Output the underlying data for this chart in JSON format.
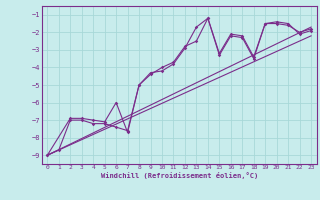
{
  "xlabel": "Windchill (Refroidissement éolien,°C)",
  "bg_color": "#c8ecec",
  "grid_color": "#a8d8d8",
  "line_color": "#7b2d8b",
  "spine_color": "#7b2d8b",
  "xlim": [
    -0.5,
    23.5
  ],
  "ylim": [
    -9.5,
    -0.5
  ],
  "yticks": [
    -9,
    -8,
    -7,
    -6,
    -5,
    -4,
    -3,
    -2,
    -1
  ],
  "xticks": [
    0,
    1,
    2,
    3,
    4,
    5,
    6,
    7,
    8,
    9,
    10,
    11,
    12,
    13,
    14,
    15,
    16,
    17,
    18,
    19,
    20,
    21,
    22,
    23
  ],
  "series1_x": [
    0,
    1,
    2,
    3,
    4,
    5,
    6,
    7,
    8,
    9,
    10,
    11,
    12,
    13,
    14,
    15,
    16,
    17,
    18,
    19,
    20,
    21,
    22,
    23
  ],
  "series1_y": [
    -9.0,
    -8.7,
    -7.0,
    -7.0,
    -7.2,
    -7.2,
    -7.4,
    -7.6,
    -5.0,
    -4.3,
    -4.2,
    -3.8,
    -2.9,
    -1.7,
    -1.2,
    -3.3,
    -2.2,
    -2.3,
    -3.5,
    -1.5,
    -1.5,
    -1.6,
    -2.0,
    -1.8
  ],
  "series2_x": [
    0,
    2,
    3,
    4,
    5,
    6,
    7,
    8,
    9,
    10,
    11,
    12,
    13,
    14,
    15,
    16,
    17,
    18,
    19,
    20,
    21,
    22,
    23
  ],
  "series2_y": [
    -9.0,
    -6.9,
    -6.9,
    -7.0,
    -7.1,
    -6.0,
    -7.7,
    -5.0,
    -4.4,
    -4.0,
    -3.7,
    -2.8,
    -2.5,
    -1.2,
    -3.2,
    -2.1,
    -2.2,
    -3.4,
    -1.5,
    -1.4,
    -1.5,
    -2.1,
    -1.9
  ],
  "line1_x": [
    0,
    23
  ],
  "line1_y": [
    -9.0,
    -1.7
  ],
  "line2_x": [
    0,
    23
  ],
  "line2_y": [
    -9.0,
    -2.2
  ]
}
